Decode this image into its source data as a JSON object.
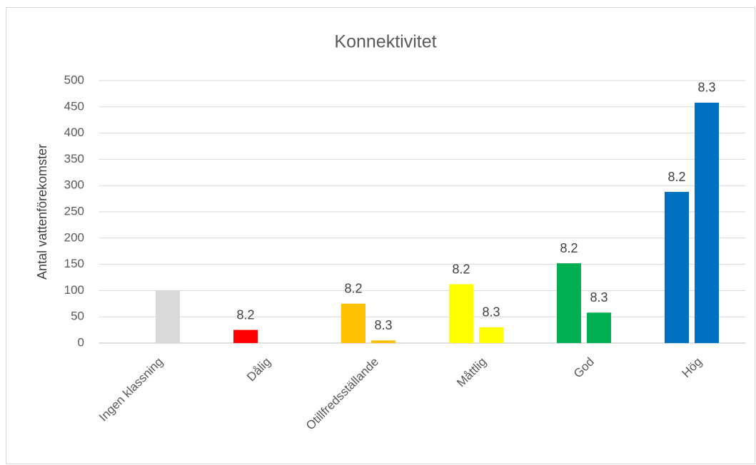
{
  "chart_data": {
    "type": "bar",
    "title": "Konnektivitet",
    "y_label": "Antal vattenförekomster",
    "categories": [
      "Ingen klassning",
      "Dålig",
      "Otillfredsställande",
      "Måttlig",
      "God",
      "Hög"
    ],
    "colors": [
      "#d9d9d9",
      "#ff0000",
      "#ffc000",
      "#ffff00",
      "#00b050",
      "#0070c0"
    ],
    "series": [
      {
        "name": "8.2",
        "values": [
          null,
          25,
          75,
          112,
          152,
          288
        ],
        "show_labels": [
          false,
          true,
          true,
          true,
          true,
          true
        ]
      },
      {
        "name": "8.3",
        "values": [
          100,
          null,
          5,
          30,
          58,
          458
        ],
        "show_labels": [
          false,
          false,
          true,
          true,
          true,
          true
        ]
      }
    ],
    "ylim": [
      0,
      500
    ],
    "yticks": [
      0,
      50,
      100,
      150,
      200,
      250,
      300,
      350,
      400,
      450,
      500
    ],
    "grid": true
  }
}
